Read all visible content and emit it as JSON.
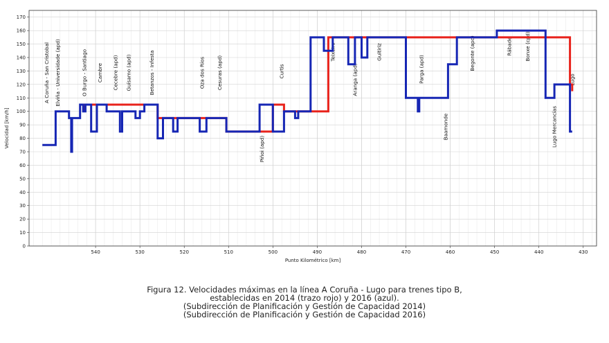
{
  "chart_data": {
    "type": "line",
    "title": "",
    "xlabel": "Punto Kilométrico [km]",
    "ylabel": "Velocidad [km/h]",
    "xlim": [
      555,
      427
    ],
    "ylim": [
      0,
      175
    ],
    "x_reversed": true,
    "grid": true,
    "x_ticks": [
      540,
      530,
      520,
      510,
      500,
      490,
      480,
      470,
      460,
      450,
      440,
      430
    ],
    "y_ticks": [
      0,
      10,
      20,
      30,
      40,
      50,
      60,
      70,
      80,
      90,
      100,
      110,
      120,
      130,
      140,
      150,
      160,
      170
    ],
    "series": [
      {
        "name": "2014",
        "color": "#e8221b",
        "points": [
          [
            542.5,
            100
          ],
          [
            542.5,
            105
          ],
          [
            539,
            105
          ],
          [
            526,
            105
          ],
          [
            526,
            95
          ],
          [
            510.5,
            95
          ],
          [
            510.5,
            85
          ],
          [
            500,
            85
          ],
          [
            500,
            105
          ],
          [
            497.5,
            105
          ],
          [
            497.5,
            100
          ],
          [
            487.5,
            100
          ],
          [
            487.5,
            155
          ],
          [
            482,
            155
          ],
          [
            482,
            155
          ],
          [
            477,
            155
          ],
          [
            477,
            155
          ],
          [
            470,
            155
          ],
          [
            433,
            155
          ],
          [
            433,
            120
          ],
          [
            432.5,
            120
          ],
          [
            432.5,
            115
          ]
        ]
      },
      {
        "name": "2016",
        "color": "#1626b4",
        "points": [
          [
            552,
            75
          ],
          [
            549,
            75
          ],
          [
            549,
            100
          ],
          [
            546,
            100
          ],
          [
            546,
            95
          ],
          [
            545.5,
            95
          ],
          [
            545.5,
            70
          ],
          [
            545.3,
            70
          ],
          [
            545.3,
            95
          ],
          [
            543.5,
            95
          ],
          [
            543.5,
            105
          ],
          [
            542.8,
            105
          ],
          [
            542.8,
            100
          ],
          [
            542.3,
            100
          ],
          [
            542.3,
            105
          ],
          [
            541,
            105
          ],
          [
            541,
            85
          ],
          [
            539.7,
            85
          ],
          [
            539.7,
            105
          ],
          [
            537.5,
            105
          ],
          [
            537.5,
            100
          ],
          [
            534.5,
            100
          ],
          [
            534.5,
            85
          ],
          [
            534,
            85
          ],
          [
            534,
            100
          ],
          [
            531,
            100
          ],
          [
            531,
            95
          ],
          [
            530,
            95
          ],
          [
            530,
            100
          ],
          [
            529,
            100
          ],
          [
            529,
            105
          ],
          [
            526,
            105
          ],
          [
            526,
            80
          ],
          [
            524.8,
            80
          ],
          [
            524.8,
            95
          ],
          [
            522.5,
            95
          ],
          [
            522.5,
            85
          ],
          [
            521.5,
            85
          ],
          [
            521.5,
            95
          ],
          [
            516.5,
            95
          ],
          [
            516.5,
            85
          ],
          [
            515,
            85
          ],
          [
            515,
            95
          ],
          [
            510.5,
            95
          ],
          [
            510.5,
            85
          ],
          [
            503,
            85
          ],
          [
            503,
            105
          ],
          [
            500,
            105
          ],
          [
            500,
            85
          ],
          [
            497.5,
            85
          ],
          [
            497.5,
            100
          ],
          [
            495,
            100
          ],
          [
            495,
            95
          ],
          [
            494.3,
            95
          ],
          [
            494.3,
            100
          ],
          [
            491.5,
            100
          ],
          [
            491.5,
            155
          ],
          [
            488.5,
            155
          ],
          [
            488.5,
            145
          ],
          [
            486.5,
            145
          ],
          [
            486.5,
            155
          ],
          [
            483,
            155
          ],
          [
            483,
            135
          ],
          [
            481.5,
            135
          ],
          [
            481.5,
            155
          ],
          [
            480,
            155
          ],
          [
            480,
            140
          ],
          [
            478.7,
            140
          ],
          [
            478.7,
            155
          ],
          [
            470,
            155
          ],
          [
            470,
            110
          ],
          [
            467.3,
            110
          ],
          [
            467.3,
            100
          ],
          [
            467,
            100
          ],
          [
            467,
            110
          ],
          [
            460.5,
            110
          ],
          [
            460.5,
            135
          ],
          [
            458.5,
            135
          ],
          [
            458.5,
            155
          ],
          [
            449.5,
            155
          ],
          [
            449.5,
            160
          ],
          [
            438.5,
            160
          ],
          [
            438.5,
            110
          ],
          [
            436.5,
            110
          ],
          [
            436.5,
            120
          ],
          [
            433,
            120
          ],
          [
            433,
            85
          ],
          [
            432.5,
            85
          ]
        ]
      }
    ],
    "station_labels": [
      {
        "text": "A Coruña - San Cristobal",
        "x": 551
      },
      {
        "text": "Elviña - Universidade (apd)",
        "x": 548.5
      },
      {
        "text": "O Burgo - Santiago",
        "x": 542.5
      },
      {
        "text": "Cambre",
        "x": 539
      },
      {
        "text": "Cecebre (apd)",
        "x": 535.5
      },
      {
        "text": "Guísamo (apd)",
        "x": 532.5
      },
      {
        "text": "Betanzos - Infesta",
        "x": 527.3
      },
      {
        "text": "Oza dos Ríos",
        "x": 516
      },
      {
        "text": "Cesuras (apd)",
        "x": 512
      },
      {
        "text": "Piñoi (apd)",
        "x": 502.5
      },
      {
        "text": "Curtis",
        "x": 498
      },
      {
        "text": "Teixeiro",
        "x": 486.5
      },
      {
        "text": "Aranga (apd)",
        "x": 481.5
      },
      {
        "text": "Guitiriz",
        "x": 476
      },
      {
        "text": "Parga (apd)",
        "x": 466.5
      },
      {
        "text": "Baamonde",
        "x": 461
      },
      {
        "text": "Begonte (apd)",
        "x": 455
      },
      {
        "text": "Rábade",
        "x": 446.7
      },
      {
        "text": "Bonxe (cpd)",
        "x": 442.5
      },
      {
        "text": "Lugo Mercancías",
        "x": 436.5
      },
      {
        "text": "Lugo",
        "x": 432.5
      }
    ]
  },
  "caption": {
    "line1": "Figura 12. Velocidades máximas en la línea A Coruña - Lugo para trenes tipo B,",
    "line2": "establecidas en 2014 (trazo rojo) y 2016 (azul).",
    "line3": "(Subdirección de Planificación y Gestión de Capacidad 2014)",
    "line4": "(Subdirección de Planificación y Gestión de Capacidad 2016)"
  }
}
